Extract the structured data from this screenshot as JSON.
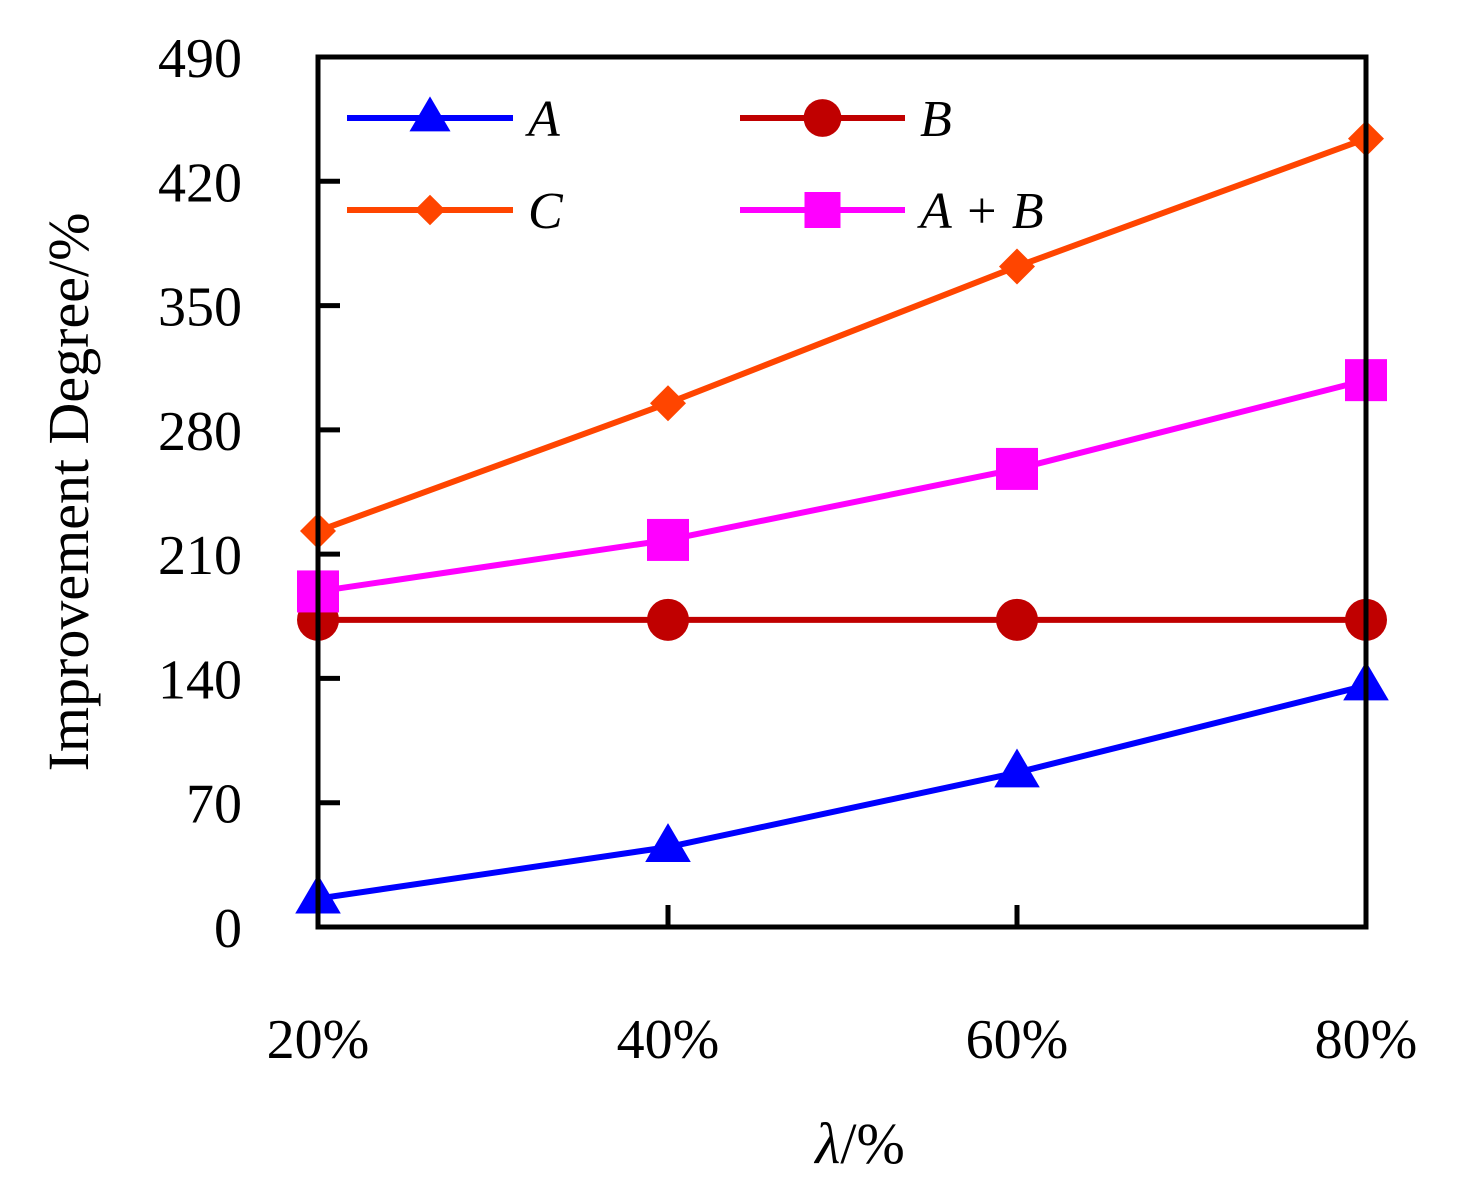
{
  "chart_data": {
    "type": "line",
    "title": "",
    "xlabel_symbol": "λ",
    "xlabel_unit": "/%",
    "ylabel": "Improvement Degree/%",
    "categories": [
      "20%",
      "40%",
      "60%",
      "80%"
    ],
    "ylim": [
      0,
      490
    ],
    "yticks": [
      0,
      70,
      140,
      210,
      280,
      350,
      420,
      490
    ],
    "grid": false,
    "legend_position": "top-left",
    "series": [
      {
        "name": "A",
        "color": "#0000ff",
        "marker": "triangle",
        "values": [
          16,
          45,
          87,
          136
        ]
      },
      {
        "name": "B",
        "color": "#c00000",
        "marker": "circle",
        "values": [
          173,
          173,
          173,
          173
        ]
      },
      {
        "name": "C",
        "color": "#ff4500",
        "marker": "diamond",
        "values": [
          223,
          295,
          372,
          444
        ]
      },
      {
        "name": "A + B",
        "color": "#ff00ff",
        "marker": "square",
        "values": [
          189,
          218,
          258,
          308
        ]
      }
    ]
  }
}
